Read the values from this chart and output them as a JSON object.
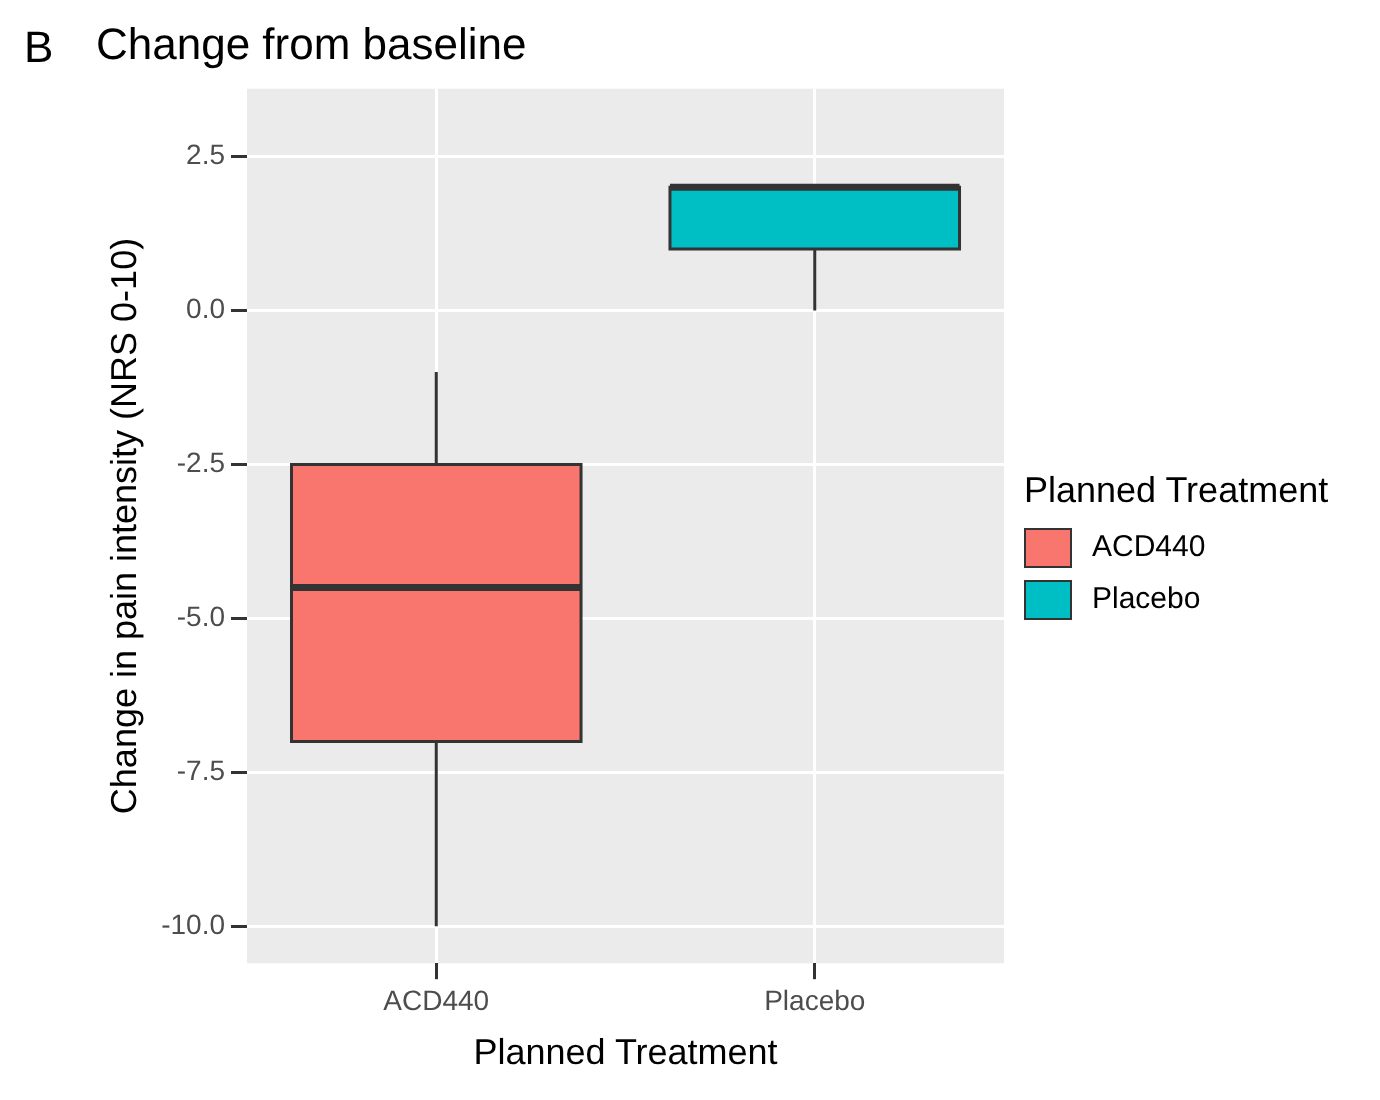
{
  "chart_data": {
    "type": "box",
    "title": "Change from baseline",
    "xlabel": "Planned Treatment",
    "ylabel": "Change in pain intensity (NRS 0-10)",
    "legend_title": "Planned Treatment",
    "annotations": [
      "B"
    ],
    "categories": [
      "ACD440",
      "Placebo"
    ],
    "series": [
      {
        "name": "ACD440",
        "color": "#f8766d",
        "boxes": [
          {
            "low": -10,
            "q1": -7,
            "median": -4.5,
            "q3": -2.5,
            "high": -1
          },
          null
        ]
      },
      {
        "name": "Placebo",
        "color": "#00bfc4",
        "boxes": [
          null,
          {
            "low": 0,
            "q1": 1,
            "median": 2,
            "q3": 2,
            "high": 2
          }
        ]
      }
    ],
    "ylim": [
      -10.6,
      3.6
    ],
    "yticks": [
      {
        "value": -10,
        "label": "-10.0"
      },
      {
        "value": -7.5,
        "label": "-7.5"
      },
      {
        "value": -5,
        "label": "-5.0"
      },
      {
        "value": -2.5,
        "label": "-2.5"
      },
      {
        "value": 0,
        "label": "0.0"
      },
      {
        "value": 2.5,
        "label": "2.5"
      }
    ],
    "grid": true,
    "legend": "right"
  }
}
